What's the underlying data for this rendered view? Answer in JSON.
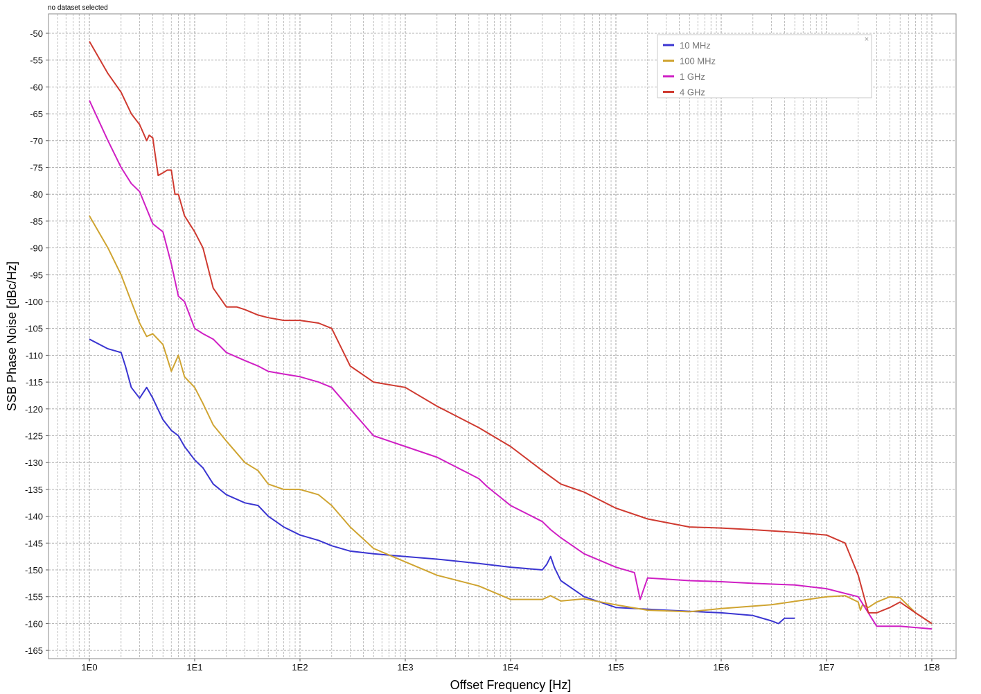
{
  "status_text": "no dataset selected",
  "legend_close_glyph": "×",
  "chart_data": {
    "type": "line",
    "xlabel": "Offset Frequency [Hz]",
    "ylabel": "SSB Phase Noise [dBc/Hz]",
    "x_scale": "log",
    "xlim": [
      0.6,
      180000000
    ],
    "ylim": [
      -167,
      -46
    ],
    "x_ticks": [
      1,
      10,
      100,
      1000,
      10000,
      100000,
      1000000,
      10000000,
      100000000
    ],
    "x_tick_labels": [
      "1E0",
      "1E1",
      "1E2",
      "1E3",
      "1E4",
      "1E5",
      "1E6",
      "1E7",
      "1E8"
    ],
    "y_ticks": [
      -50,
      -55,
      -60,
      -65,
      -70,
      -75,
      -80,
      -85,
      -90,
      -95,
      -100,
      -105,
      -110,
      -115,
      -120,
      -125,
      -130,
      -135,
      -140,
      -145,
      -150,
      -155,
      -160,
      -165
    ],
    "grid": true,
    "legend_position": "top-right",
    "series": [
      {
        "name": "10 MHz",
        "color": "#3a35d1",
        "x": [
          1,
          1.5,
          2,
          2.2,
          2.5,
          3,
          3.5,
          4,
          5,
          6,
          7,
          8,
          10,
          12,
          15,
          20,
          30,
          40,
          50,
          70,
          100,
          150,
          200,
          300,
          500,
          1000,
          2000,
          5000,
          10000,
          20000,
          22000,
          24000,
          26000,
          30000,
          50000,
          100000,
          300000,
          1000000,
          2000000,
          3000000,
          3500000,
          4000000,
          5000000
        ],
        "y": [
          -107,
          -108.8,
          -109.5,
          -112,
          -116,
          -118,
          -116,
          -118,
          -122,
          -124,
          -125,
          -127,
          -129.5,
          -131,
          -134,
          -136,
          -137.5,
          -138,
          -140,
          -142,
          -143.5,
          -144.5,
          -145.5,
          -146.5,
          -147,
          -147.5,
          -148,
          -148.8,
          -149.5,
          -150,
          -149,
          -147.5,
          -149.5,
          -152,
          -155,
          -157,
          -157.5,
          -158,
          -158.5,
          -159.5,
          -160,
          -159,
          -159
        ]
      },
      {
        "name": "100 MHz",
        "color": "#cfa431",
        "x": [
          1,
          1.5,
          2,
          2.5,
          3,
          3.5,
          4,
          5,
          6,
          7,
          8,
          10,
          12,
          15,
          20,
          30,
          40,
          50,
          70,
          100,
          150,
          200,
          300,
          500,
          1000,
          2000,
          5000,
          10000,
          20000,
          24000,
          30000,
          50000,
          100000,
          200000,
          500000,
          1000000,
          3000000,
          10000000,
          15000000,
          20000000,
          21000000,
          22000000,
          25000000,
          30000000,
          40000000,
          50000000,
          70000000,
          100000000
        ],
        "y": [
          -84,
          -90,
          -95,
          -100,
          -104,
          -106.5,
          -106,
          -108,
          -113,
          -110,
          -114,
          -116,
          -119,
          -123,
          -126,
          -130,
          -131.5,
          -134,
          -135,
          -135,
          -136,
          -138,
          -142,
          -146,
          -148.5,
          -151,
          -153,
          -155.5,
          -155.5,
          -154.8,
          -155.8,
          -155.4,
          -156.5,
          -157.5,
          -157.8,
          -157.2,
          -156.5,
          -155,
          -154.8,
          -156,
          -157.5,
          -156.5,
          -157,
          -156,
          -155,
          -155.2,
          -158,
          -160
        ]
      },
      {
        "name": "1 GHz",
        "color": "#cf1fc4",
        "x": [
          1,
          1.5,
          2,
          2.5,
          3,
          4,
          5,
          6,
          7,
          8,
          10,
          12,
          15,
          20,
          30,
          40,
          50,
          70,
          100,
          150,
          200,
          300,
          500,
          1000,
          2000,
          5000,
          6000,
          10000,
          20000,
          24000,
          30000,
          50000,
          100000,
          150000,
          170000,
          200000,
          500000,
          1000000,
          2000000,
          5000000,
          10000000,
          20000000,
          30000000,
          50000000,
          100000000
        ],
        "y": [
          -62.5,
          -70,
          -75,
          -78,
          -79.5,
          -85.5,
          -87,
          -93,
          -99,
          -100,
          -105,
          -106,
          -107,
          -109.5,
          -111,
          -112,
          -113,
          -113.5,
          -114,
          -115,
          -116,
          -120,
          -125,
          -127,
          -129,
          -133,
          -134.5,
          -138,
          -141,
          -142.5,
          -144,
          -147,
          -149.5,
          -150.5,
          -155.5,
          -151.5,
          -152,
          -152.2,
          -152.5,
          -152.8,
          -153.5,
          -155,
          -160.5,
          -160.5,
          -161
        ]
      },
      {
        "name": "4 GHz",
        "color": "#cf3a30",
        "x": [
          1,
          1.5,
          2,
          2.5,
          3,
          3.5,
          3.7,
          4,
          4.5,
          5,
          5.5,
          6,
          6.5,
          7,
          8,
          10,
          12,
          15,
          20,
          25,
          30,
          40,
          50,
          70,
          100,
          150,
          200,
          300,
          500,
          1000,
          2000,
          5000,
          10000,
          20000,
          30000,
          50000,
          100000,
          200000,
          500000,
          1000000,
          2000000,
          5000000,
          10000000,
          15000000,
          20000000,
          25000000,
          30000000,
          40000000,
          50000000,
          70000000,
          100000000
        ],
        "y": [
          -51.5,
          -57.5,
          -61,
          -65,
          -67,
          -70,
          -69,
          -69.5,
          -76.5,
          -76,
          -75.5,
          -75.5,
          -80,
          -80,
          -84,
          -87,
          -90,
          -97.5,
          -101,
          -101,
          -101.5,
          -102.5,
          -103,
          -103.5,
          -103.5,
          -104,
          -105,
          -112,
          -115,
          -116,
          -119.5,
          -123.5,
          -127,
          -131.5,
          -134,
          -135.5,
          -138.5,
          -140.5,
          -142,
          -142.2,
          -142.5,
          -143,
          -143.5,
          -145,
          -151,
          -158,
          -158,
          -157,
          -156,
          -158,
          -160
        ]
      }
    ]
  }
}
